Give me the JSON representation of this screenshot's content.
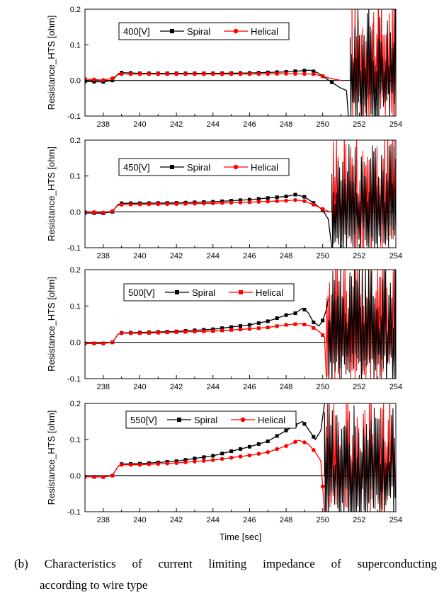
{
  "figure": {
    "xlabel": "Time [sec]",
    "caption_line1": [
      "(b)",
      "Characteristics",
      "of",
      "current",
      "limiting",
      "impedance",
      "of",
      "superconducting"
    ],
    "caption_line2": "according to wire type"
  },
  "colors": {
    "spiral": "#000000",
    "helical": "#ff0000",
    "axis": "#000000"
  },
  "chart_data": [
    {
      "type": "line",
      "legend_title": "400[V]",
      "ylabel": "Resistance_HTS [ohm]",
      "xlim": [
        237,
        254
      ],
      "ylim": [
        -0.1,
        0.2
      ],
      "xticks": [
        238,
        240,
        242,
        244,
        246,
        248,
        250,
        252,
        254
      ],
      "yticks": [
        -0.1,
        0.0,
        0.1,
        0.2
      ],
      "ytick_labels": [
        "-0.1",
        "0.0",
        "0.1",
        "0.2"
      ],
      "legend_placement": "top-left",
      "series": [
        {
          "name": "Spiral",
          "marker": "square",
          "color": "#000000",
          "points": [
            [
              237,
              -0.003
            ],
            [
              238,
              -0.004
            ],
            [
              238.5,
              0.0
            ],
            [
              238.8,
              0.018
            ],
            [
              239,
              0.022
            ],
            [
              240,
              0.02
            ],
            [
              242,
              0.02
            ],
            [
              244,
              0.02
            ],
            [
              246,
              0.021
            ],
            [
              248,
              0.024
            ],
            [
              249.3,
              0.029
            ],
            [
              249.7,
              0.022
            ],
            [
              250.2,
              0.005
            ],
            [
              250.7,
              -0.012
            ],
            [
              251.0,
              -0.022
            ],
            [
              251.3,
              -0.028
            ],
            [
              251.4,
              -0.1
            ]
          ],
          "markers": [
            237,
            237.5,
            238,
            238.5,
            239,
            239.5,
            240,
            240.5,
            241,
            241.5,
            242,
            242.5,
            243,
            243.5,
            244,
            244.5,
            245,
            245.5,
            246,
            246.5,
            247,
            247.5,
            248,
            248.5,
            249,
            249.5,
            250,
            250.5
          ]
        },
        {
          "name": "Helical",
          "marker": "circle",
          "color": "#ff0000",
          "points": [
            [
              237,
              0.004
            ],
            [
              238,
              0.001
            ],
            [
              238.5,
              0.006
            ],
            [
              238.8,
              0.016
            ],
            [
              239,
              0.018
            ],
            [
              240,
              0.018
            ],
            [
              242,
              0.018
            ],
            [
              244,
              0.018
            ],
            [
              246,
              0.018
            ],
            [
              248,
              0.019
            ],
            [
              249.5,
              0.018
            ],
            [
              250,
              0.012
            ],
            [
              250.5,
              0.005
            ],
            [
              251,
              0.0
            ]
          ],
          "markers": [
            237,
            237.5,
            238,
            238.5,
            239,
            239.5,
            240,
            240.5,
            241,
            241.5,
            242,
            242.5,
            243,
            243.5,
            244,
            244.5,
            245,
            245.5,
            246,
            246.5,
            247,
            247.5,
            248,
            248.5,
            249,
            249.5,
            250
          ]
        }
      ],
      "oscillation": {
        "spiral_from": 251.5,
        "helical_from": 251.6,
        "to": 254
      }
    },
    {
      "type": "line",
      "legend_title": "450[V]",
      "ylabel": "Resistance_HTS [ohm]",
      "xlim": [
        237,
        254
      ],
      "ylim": [
        -0.1,
        0.2
      ],
      "xticks": [
        238,
        240,
        242,
        244,
        246,
        248,
        250,
        252,
        254
      ],
      "yticks": [
        -0.1,
        0.0,
        0.1,
        0.2
      ],
      "ytick_labels": [
        "-0.1",
        "0.0",
        "0.1",
        "0.2"
      ],
      "legend_placement": "top-center",
      "series": [
        {
          "name": "Spiral",
          "marker": "square",
          "color": "#000000",
          "points": [
            [
              237,
              -0.003
            ],
            [
              238,
              -0.004
            ],
            [
              238.5,
              0.0
            ],
            [
              238.8,
              0.02
            ],
            [
              239,
              0.024
            ],
            [
              240,
              0.024
            ],
            [
              242,
              0.025
            ],
            [
              244,
              0.028
            ],
            [
              246,
              0.034
            ],
            [
              248,
              0.043
            ],
            [
              248.5,
              0.048
            ],
            [
              249,
              0.042
            ],
            [
              249.5,
              0.025
            ],
            [
              250,
              0.005
            ],
            [
              250.3,
              -0.02
            ],
            [
              250.5,
              -0.1
            ]
          ],
          "markers": [
            237,
            237.5,
            238,
            238.5,
            239,
            239.5,
            240,
            240.5,
            241,
            241.5,
            242,
            242.5,
            243,
            243.5,
            244,
            244.5,
            245,
            245.5,
            246,
            246.5,
            247,
            247.5,
            248,
            248.5,
            249,
            249.5,
            250
          ]
        },
        {
          "name": "Helical",
          "marker": "circle",
          "color": "#ff0000",
          "points": [
            [
              237,
              0.0
            ],
            [
              238,
              -0.002
            ],
            [
              238.5,
              0.002
            ],
            [
              238.8,
              0.018
            ],
            [
              239,
              0.02
            ],
            [
              240,
              0.021
            ],
            [
              242,
              0.022
            ],
            [
              244,
              0.024
            ],
            [
              246,
              0.027
            ],
            [
              248,
              0.031
            ],
            [
              248.5,
              0.033
            ],
            [
              249,
              0.03
            ],
            [
              249.5,
              0.02
            ],
            [
              250,
              0.008
            ],
            [
              250.4,
              0.0
            ]
          ],
          "markers": [
            237,
            237.5,
            238,
            238.5,
            239,
            239.5,
            240,
            240.5,
            241,
            241.5,
            242,
            242.5,
            243,
            243.5,
            244,
            244.5,
            245,
            245.5,
            246,
            246.5,
            247,
            247.5,
            248,
            248.5,
            249,
            249.5,
            250
          ]
        }
      ],
      "oscillation": {
        "spiral_from": 250.5,
        "helical_from": 250.5,
        "to": 254
      }
    },
    {
      "type": "line",
      "legend_title": "500[V]",
      "ylabel": "Resistance_HTS [ohm]",
      "xlim": [
        237,
        254
      ],
      "ylim": [
        -0.1,
        0.2
      ],
      "xticks": [
        238,
        240,
        242,
        244,
        246,
        248,
        250,
        252,
        254
      ],
      "yticks": [
        -0.1,
        0.0,
        0.1,
        0.2
      ],
      "ytick_labels": [
        "-0.1",
        "0.0",
        "0.1",
        "0.2"
      ],
      "legend_placement": "top-center",
      "series": [
        {
          "name": "Spiral",
          "marker": "square",
          "color": "#000000",
          "points": [
            [
              237,
              -0.003
            ],
            [
              238,
              -0.003
            ],
            [
              238.5,
              0.0
            ],
            [
              238.8,
              0.022
            ],
            [
              239,
              0.026
            ],
            [
              240,
              0.027
            ],
            [
              242,
              0.03
            ],
            [
              244,
              0.036
            ],
            [
              246,
              0.048
            ],
            [
              247,
              0.058
            ],
            [
              248,
              0.075
            ],
            [
              248.5,
              0.08
            ],
            [
              248.9,
              0.094
            ],
            [
              249.2,
              0.082
            ],
            [
              249.5,
              0.055
            ],
            [
              249.8,
              0.045
            ],
            [
              250.0,
              0.06
            ],
            [
              250.2,
              0.09
            ],
            [
              250.3,
              0.12
            ]
          ],
          "markers": [
            237,
            237.5,
            238,
            238.5,
            239,
            239.5,
            240,
            240.5,
            241,
            241.5,
            242,
            242.5,
            243,
            243.5,
            244,
            244.5,
            245,
            245.5,
            246,
            246.5,
            247,
            247.5,
            248,
            248.5,
            249,
            249.5,
            250
          ]
        },
        {
          "name": "Helical",
          "marker": "square",
          "color": "#ff0000",
          "points": [
            [
              237,
              -0.003
            ],
            [
              238,
              -0.003
            ],
            [
              238.5,
              0.0
            ],
            [
              238.8,
              0.022
            ],
            [
              239,
              0.025
            ],
            [
              240,
              0.025
            ],
            [
              242,
              0.028
            ],
            [
              244,
              0.031
            ],
            [
              246,
              0.037
            ],
            [
              247,
              0.041
            ],
            [
              248,
              0.048
            ],
            [
              248.8,
              0.051
            ],
            [
              249.3,
              0.046
            ],
            [
              249.8,
              0.03
            ],
            [
              250.1,
              0.015
            ],
            [
              250.2,
              -0.1
            ]
          ],
          "markers": [
            237,
            237.5,
            238,
            238.5,
            239,
            239.5,
            240,
            240.5,
            241,
            241.5,
            242,
            242.5,
            243,
            243.5,
            244,
            244.5,
            245,
            245.5,
            246,
            246.5,
            247,
            247.5,
            248,
            248.5,
            249,
            249.5,
            250
          ]
        }
      ],
      "oscillation": {
        "spiral_from": 250.3,
        "helical_from": 250.2,
        "to": 254
      }
    },
    {
      "type": "line",
      "legend_title": "550[V]",
      "ylabel": "Resistance_HTS [ohm]",
      "xlim": [
        237,
        254
      ],
      "ylim": [
        -0.1,
        0.2
      ],
      "xticks": [
        238,
        240,
        242,
        244,
        246,
        248,
        250,
        252,
        254
      ],
      "yticks": [
        -0.1,
        0.0,
        0.1,
        0.2
      ],
      "ytick_labels": [
        "-0.1",
        "0.0",
        "0.1",
        "0.2"
      ],
      "legend_placement": "top-center",
      "series": [
        {
          "name": "Spiral",
          "marker": "square",
          "color": "#000000",
          "points": [
            [
              237,
              -0.003
            ],
            [
              238,
              -0.004
            ],
            [
              238.5,
              0.0
            ],
            [
              238.8,
              0.025
            ],
            [
              239,
              0.032
            ],
            [
              240,
              0.033
            ],
            [
              242,
              0.04
            ],
            [
              244,
              0.055
            ],
            [
              246,
              0.08
            ],
            [
              247,
              0.095
            ],
            [
              248,
              0.125
            ],
            [
              248.5,
              0.14
            ],
            [
              248.9,
              0.15
            ],
            [
              249.2,
              0.13
            ],
            [
              249.6,
              0.1
            ],
            [
              249.9,
              0.125
            ],
            [
              250.1,
              0.2
            ]
          ],
          "markers": [
            237,
            237.5,
            238,
            238.5,
            239,
            239.5,
            240,
            240.5,
            241,
            241.5,
            242,
            242.5,
            243,
            243.5,
            244,
            244.5,
            245,
            245.5,
            246,
            246.5,
            247,
            247.5,
            248,
            248.5,
            249,
            249.5
          ]
        },
        {
          "name": "Helical",
          "marker": "circle",
          "color": "#ff0000",
          "points": [
            [
              237,
              -0.003
            ],
            [
              238,
              -0.004
            ],
            [
              238.5,
              0.0
            ],
            [
              238.8,
              0.025
            ],
            [
              239,
              0.03
            ],
            [
              240,
              0.03
            ],
            [
              242,
              0.035
            ],
            [
              244,
              0.043
            ],
            [
              246,
              0.056
            ],
            [
              247,
              0.065
            ],
            [
              248,
              0.082
            ],
            [
              248.7,
              0.098
            ],
            [
              249.2,
              0.088
            ],
            [
              249.6,
              0.065
            ],
            [
              249.9,
              0.04
            ],
            [
              250.1,
              -0.1
            ]
          ],
          "markers": [
            237,
            237.5,
            238,
            238.5,
            239,
            239.5,
            240,
            240.5,
            241,
            241.5,
            242,
            242.5,
            243,
            243.5,
            244,
            244.5,
            245,
            245.5,
            246,
            246.5,
            247,
            247.5,
            248,
            248.5,
            249,
            249.5,
            250
          ]
        }
      ],
      "oscillation": {
        "spiral_from": 250.1,
        "helical_from": 250.1,
        "to": 254
      }
    }
  ]
}
